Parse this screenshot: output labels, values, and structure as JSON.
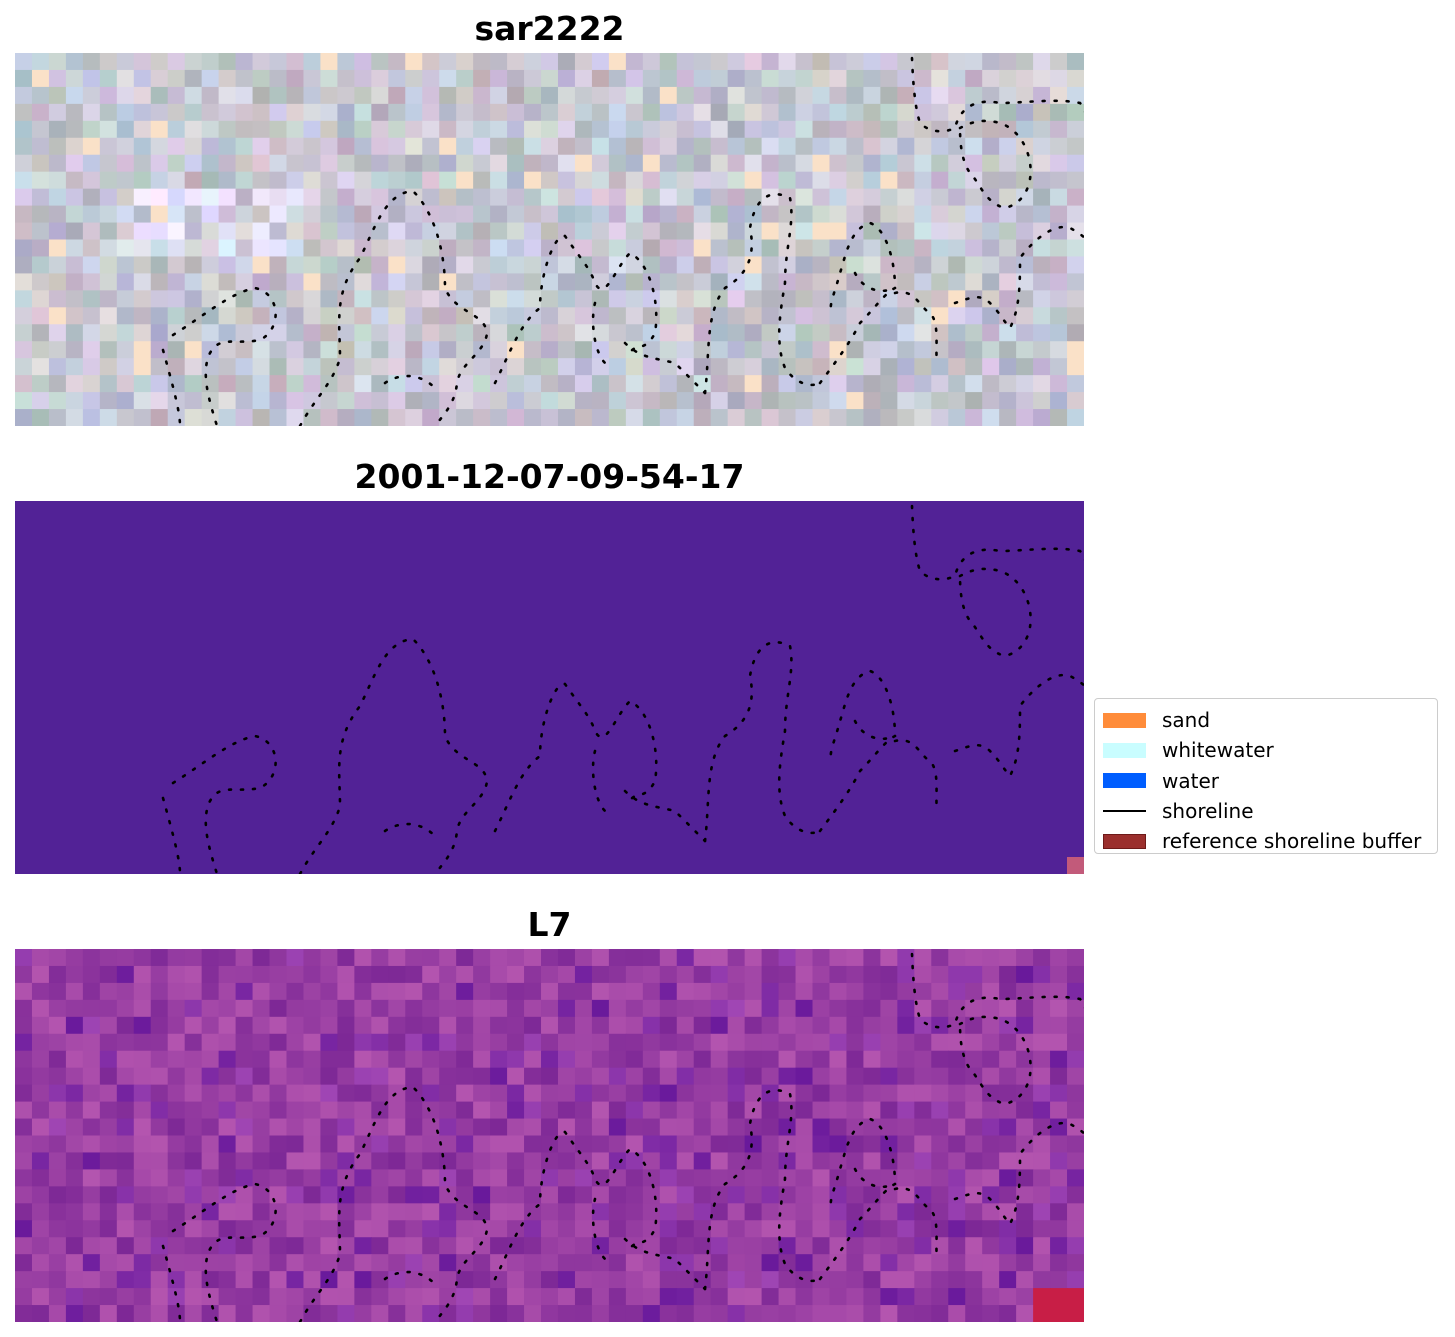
{
  "panels": [
    {
      "title": "sar2222",
      "kind": "rgb"
    },
    {
      "title": "2001-12-07-09-54-17",
      "kind": "classified"
    },
    {
      "title": "L7",
      "kind": "index"
    }
  ],
  "legend": {
    "items": [
      {
        "label": "sand",
        "type": "patch",
        "color": "#ff8c3a",
        "edge": "#ff8c3a"
      },
      {
        "label": "whitewater",
        "type": "patch",
        "color": "#c9fdff",
        "edge": "#c9fdff"
      },
      {
        "label": "water",
        "type": "patch",
        "color": "#005eff",
        "edge": "#005eff"
      },
      {
        "label": "shoreline",
        "type": "line",
        "color": "#000000"
      },
      {
        "label": "reference shoreline buffer",
        "type": "patch",
        "color": "#9b2f2d",
        "edge": "#6e1a19"
      }
    ]
  },
  "colors": {
    "classified_background": "#522296",
    "classified_corner": "#c25a7a",
    "shoreline_dots": "#000000"
  }
}
